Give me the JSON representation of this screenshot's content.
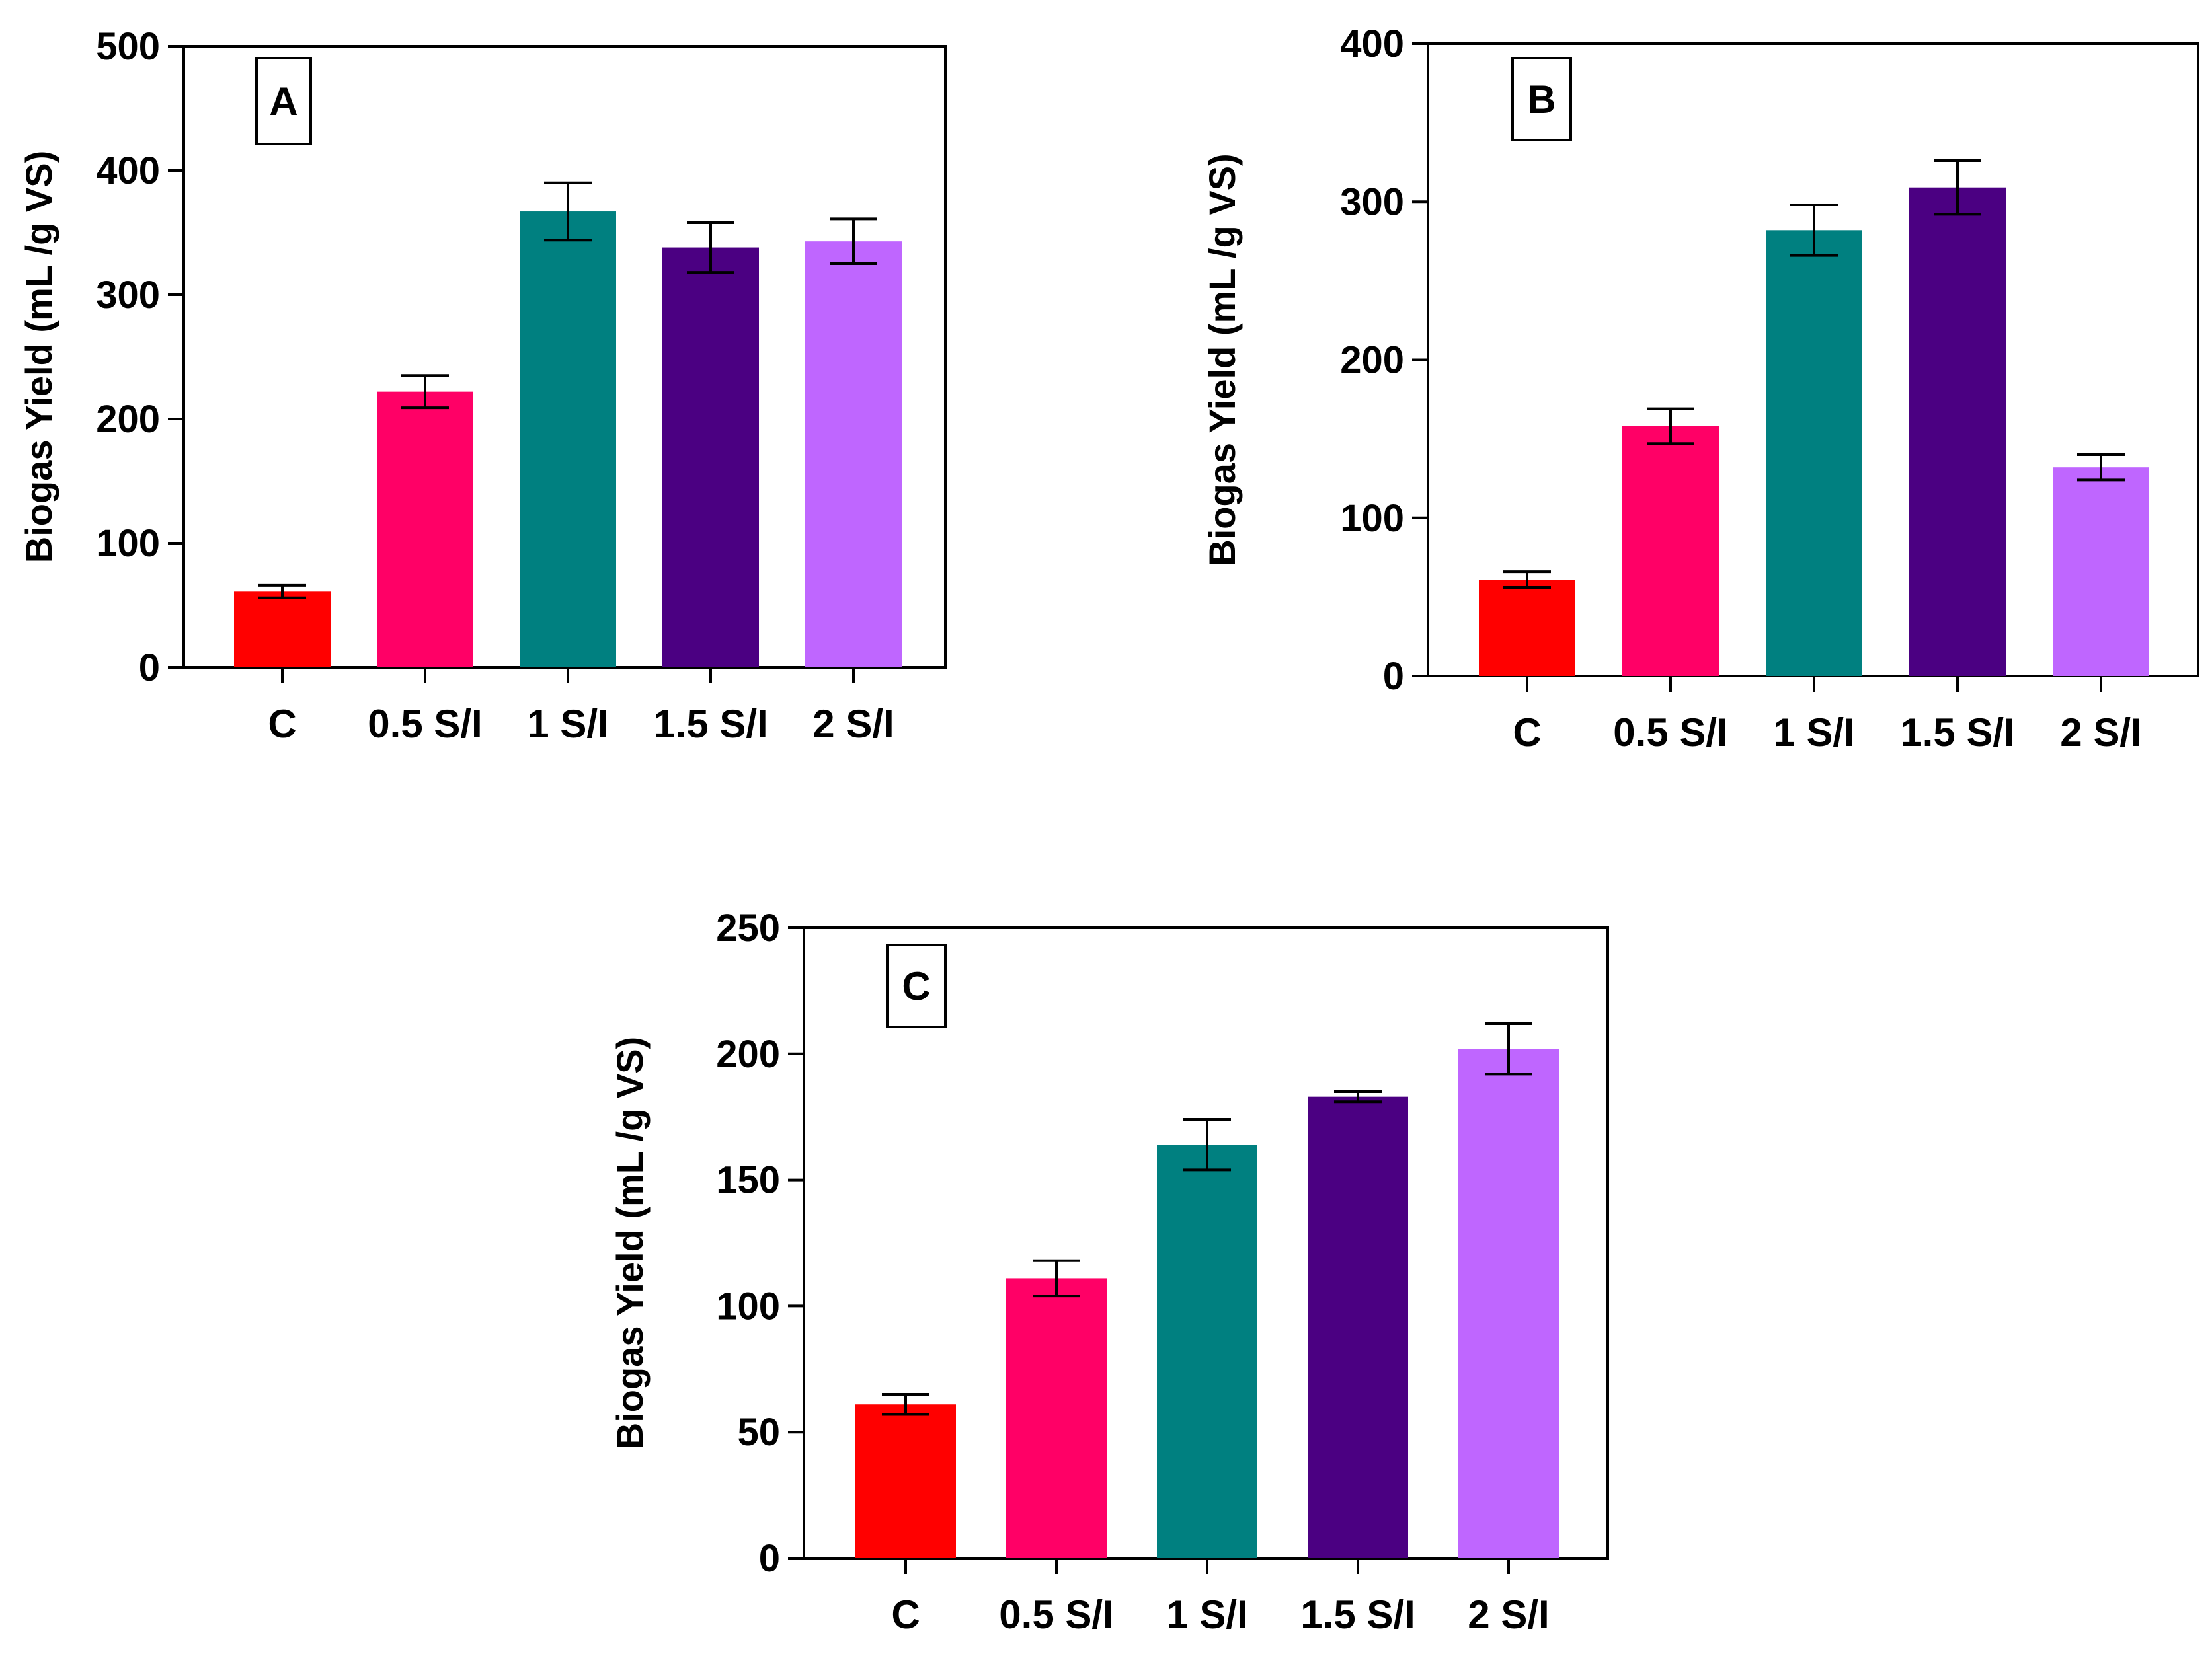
{
  "chart_data": [
    {
      "type": "bar",
      "panel_label": "A",
      "categories": [
        "C",
        "0.5 S/I",
        "1 S/I",
        "1.5 S/I",
        "2 S/I"
      ],
      "values": [
        61,
        222,
        367,
        338,
        343
      ],
      "errors": [
        5,
        13,
        23,
        20,
        18
      ],
      "colors": [
        "#FF0000",
        "#FF0066",
        "#008080",
        "#4B0082",
        "#BF66FF"
      ],
      "ylabel": "Biogas Yield (mL /g VS)",
      "xlabel": "",
      "ylim": [
        0,
        500
      ],
      "yticks": [
        0,
        100,
        200,
        300,
        400,
        500
      ],
      "grid": false
    },
    {
      "type": "bar",
      "panel_label": "B",
      "categories": [
        "C",
        "0.5 S/I",
        "1 S/I",
        "1.5 S/I",
        "2 S/I"
      ],
      "values": [
        61,
        158,
        282,
        309,
        132
      ],
      "errors": [
        5,
        11,
        16,
        17,
        8
      ],
      "colors": [
        "#FF0000",
        "#FF0066",
        "#008080",
        "#4B0082",
        "#BF66FF"
      ],
      "ylabel": "Biogas Yield (mL /g VS)",
      "xlabel": "",
      "ylim": [
        0,
        400
      ],
      "yticks": [
        0,
        100,
        200,
        300,
        400
      ],
      "grid": false
    },
    {
      "type": "bar",
      "panel_label": "C",
      "categories": [
        "C",
        "0.5 S/I",
        "1 S/I",
        "1.5 S/I",
        "2 S/I"
      ],
      "values": [
        61,
        111,
        164,
        183,
        202
      ],
      "errors": [
        4,
        7,
        10,
        2,
        10
      ],
      "colors": [
        "#FF0000",
        "#FF0066",
        "#008080",
        "#4B0082",
        "#BF66FF"
      ],
      "ylabel": "Biogas Yield (mL /g VS)",
      "xlabel": "",
      "ylim": [
        0,
        250
      ],
      "yticks": [
        0,
        50,
        100,
        150,
        200,
        250
      ],
      "grid": false
    }
  ]
}
